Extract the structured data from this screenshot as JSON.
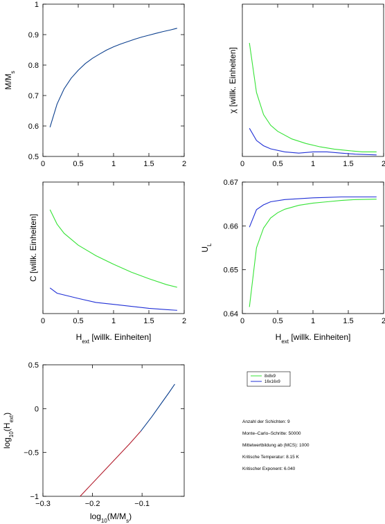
{
  "colors": {
    "blue": "#1f2fd6",
    "green": "#35e335",
    "navy": "#0b3f8e",
    "red": "#b21a2a",
    "axis": "#000000"
  },
  "legend": {
    "entries": [
      {
        "label": "8x8x9",
        "color": "#35e335"
      },
      {
        "label": "16x16x9",
        "color": "#1f2fd6"
      }
    ]
  },
  "info": {
    "layers": "Anzahl der Schichten: 9",
    "mc_steps": "Monte–Carlo–Schritte: 50000",
    "averaging": "Mittelwertbildung ab (MCS): 1000",
    "critical_temp": "Kritische Temperatur: 8.15 K",
    "critical_exponent": "Kritischer Exponent: 6.040"
  },
  "chart_data": [
    {
      "id": "magnetization",
      "type": "line",
      "ylabel": "M/M_s",
      "xlim": [
        0,
        2
      ],
      "ylim": [
        0.5,
        1
      ],
      "xticks": [
        "0",
        "0.5",
        "1",
        "1.5",
        "2"
      ],
      "yticks": [
        "0.5",
        "0.6",
        "0.7",
        "0.8",
        "0.9",
        "1"
      ],
      "series": [
        {
          "color": "#0b3f8e",
          "x": [
            0.1,
            0.2,
            0.3,
            0.4,
            0.5,
            0.6,
            0.7,
            0.8,
            0.9,
            1.0,
            1.1,
            1.2,
            1.3,
            1.4,
            1.5,
            1.6,
            1.7,
            1.8,
            1.9
          ],
          "y": [
            0.596,
            0.672,
            0.722,
            0.757,
            0.783,
            0.805,
            0.822,
            0.836,
            0.849,
            0.86,
            0.869,
            0.877,
            0.885,
            0.892,
            0.898,
            0.904,
            0.91,
            0.915,
            0.921
          ]
        }
      ]
    },
    {
      "id": "susceptibility",
      "type": "line",
      "ylabel": "χ [willk. Einheiten]",
      "xlim": [
        0,
        2
      ],
      "ylim": [
        0,
        1
      ],
      "xticks": [
        "0",
        "0.5",
        "1",
        "1.5",
        "2"
      ],
      "yticks": [],
      "series": [
        {
          "name": "8x8x9",
          "color": "#35e335",
          "x": [
            0.1,
            0.2,
            0.3,
            0.4,
            0.5,
            0.7,
            0.9,
            1.1,
            1.3,
            1.5,
            1.7,
            1.9
          ],
          "y": [
            0.745,
            0.42,
            0.275,
            0.205,
            0.165,
            0.115,
            0.085,
            0.063,
            0.048,
            0.038,
            0.03,
            0.03
          ]
        },
        {
          "name": "16x16x9",
          "color": "#1f2fd6",
          "x": [
            0.1,
            0.2,
            0.3,
            0.4,
            0.6,
            0.8,
            1.0,
            1.2,
            1.4,
            1.6,
            1.9
          ],
          "y": [
            0.185,
            0.105,
            0.07,
            0.05,
            0.03,
            0.022,
            0.03,
            0.03,
            0.022,
            0.015,
            0.01
          ]
        }
      ]
    },
    {
      "id": "specific-heat",
      "type": "line",
      "ylabel": "C [willk. Einheiten]",
      "xlabel": "H_ext [willk. Einheiten]",
      "xlim": [
        0,
        2
      ],
      "ylim": [
        0,
        1
      ],
      "xticks": [
        "0",
        "0.5",
        "1",
        "1.5",
        "2"
      ],
      "yticks": [],
      "series": [
        {
          "name": "8x8x9",
          "color": "#35e335",
          "x": [
            0.1,
            0.2,
            0.3,
            0.5,
            0.75,
            1.0,
            1.25,
            1.5,
            1.75,
            1.9
          ],
          "y": [
            0.79,
            0.68,
            0.61,
            0.52,
            0.44,
            0.375,
            0.315,
            0.265,
            0.22,
            0.2
          ]
        },
        {
          "name": "16x16x9",
          "color": "#1f2fd6",
          "x": [
            0.1,
            0.2,
            0.5,
            0.75,
            1.0,
            1.25,
            1.5,
            1.75,
            1.9
          ],
          "y": [
            0.195,
            0.155,
            0.115,
            0.085,
            0.07,
            0.055,
            0.04,
            0.03,
            0.025
          ]
        }
      ]
    },
    {
      "id": "binder-cumulant",
      "type": "line",
      "ylabel": "U_L",
      "xlabel": "H_ext [willk. Einheiten]",
      "xlim": [
        0,
        2
      ],
      "ylim": [
        0.64,
        0.67
      ],
      "xticks": [
        "0",
        "0.5",
        "1",
        "1.5",
        "2"
      ],
      "yticks": [
        "0.64",
        "0.65",
        "0.66",
        "0.67"
      ],
      "series": [
        {
          "name": "8x8x9",
          "color": "#35e335",
          "x": [
            0.1,
            0.2,
            0.3,
            0.4,
            0.5,
            0.6,
            0.8,
            1.0,
            1.2,
            1.4,
            1.6,
            1.9
          ],
          "y": [
            0.6415,
            0.655,
            0.6595,
            0.6618,
            0.663,
            0.6638,
            0.6647,
            0.6652,
            0.6655,
            0.6658,
            0.666,
            0.6661
          ]
        },
        {
          "name": "16x16x9",
          "color": "#1f2fd6",
          "x": [
            0.1,
            0.2,
            0.3,
            0.4,
            0.6,
            0.8,
            1.0,
            1.2,
            1.4,
            1.6,
            1.9
          ],
          "y": [
            0.6597,
            0.6637,
            0.6648,
            0.6655,
            0.666,
            0.6662,
            0.6664,
            0.6665,
            0.6666,
            0.6666,
            0.6666
          ]
        }
      ]
    },
    {
      "id": "log-log",
      "type": "line",
      "ylabel": "log_10(H_ext)",
      "xlabel": "log_10(M/M_s)",
      "xlim": [
        -0.3,
        -0.015
      ],
      "ylim": [
        -1,
        0.5
      ],
      "xticks": [
        "−0.3",
        "−0.2",
        "−0.1"
      ],
      "xtickvals": [
        -0.3,
        -0.2,
        -0.1
      ],
      "yticks": [
        "−1",
        "−0.5",
        "0",
        "0.5"
      ],
      "series": [
        {
          "color": "#b21a2a",
          "x": [
            -0.225,
            -0.175,
            -0.125,
            -0.103
          ],
          "y": [
            -1.0,
            -0.7,
            -0.4,
            -0.26
          ]
        },
        {
          "color": "#0b3f8e",
          "x": [
            -0.103,
            -0.08,
            -0.06,
            -0.046,
            -0.034
          ],
          "y": [
            -0.26,
            -0.09,
            0.07,
            0.18,
            0.28
          ]
        }
      ]
    }
  ]
}
